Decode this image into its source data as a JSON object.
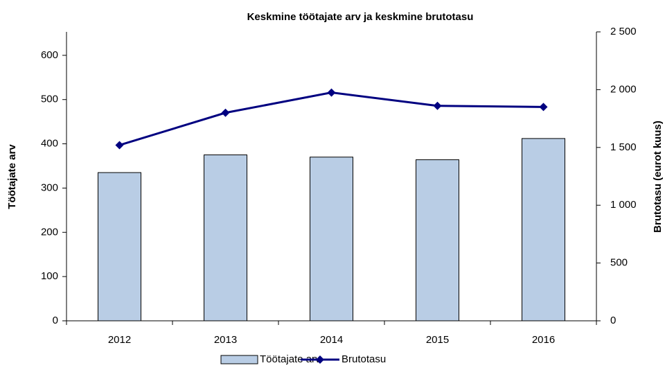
{
  "chart_data": {
    "type": "bar",
    "title": "Keskmine töötajate arv ja keskmine brutotasu",
    "y_label": "Töötajate arv",
    "y2_label": "Brutotasu (eurot kuus)",
    "categories": [
      "2012",
      "2013",
      "2014",
      "2015",
      "2016"
    ],
    "series": [
      {
        "name": "Töötajate arv",
        "type": "bar",
        "color": "#b9cde5",
        "values": [
          335,
          375,
          370,
          364,
          412
        ]
      },
      {
        "name": "Brutotasu",
        "type": "line",
        "axis": "y2",
        "color": "#000080",
        "values": [
          1520,
          1800,
          1975,
          1860,
          1850
        ]
      }
    ],
    "ylim": [
      0,
      653
    ],
    "yticks": [
      0,
      100,
      200,
      300,
      400,
      500,
      600
    ],
    "y2lim": [
      0,
      2500
    ],
    "y2ticks": [
      0,
      500,
      {
        "value": 1000,
        "label": "1 000"
      },
      {
        "value": 1500,
        "label": "1 500"
      },
      {
        "value": 2000,
        "label": "2 000"
      },
      {
        "value": 2500,
        "label": "2 500"
      }
    ],
    "grid": false,
    "legend": "bottom"
  }
}
